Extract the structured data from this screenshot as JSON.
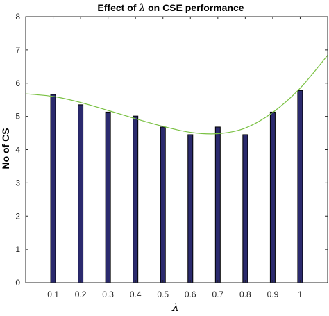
{
  "chart_data": {
    "type": "bar",
    "title": "Effect of λ on CSE performance",
    "title_prefix": "Effect of",
    "title_symbol": "λ",
    "title_suffix": "on CSE performance",
    "xlabel": "λ",
    "ylabel": "No of CS",
    "categories": [
      "0.1",
      "0.2",
      "0.3",
      "0.4",
      "0.5",
      "0.6",
      "0.7",
      "0.8",
      "0.9",
      "1"
    ],
    "x": [
      0.1,
      0.2,
      0.3,
      0.4,
      0.5,
      0.6,
      0.7,
      0.8,
      0.9,
      1.0
    ],
    "values": [
      5.66,
      5.35,
      5.13,
      5.01,
      4.68,
      4.45,
      4.68,
      4.45,
      5.13,
      5.78
    ],
    "xlim": [
      0,
      1.1
    ],
    "ylim": [
      0,
      8
    ],
    "yticks": [
      0,
      1,
      2,
      3,
      4,
      5,
      6,
      7,
      8
    ],
    "bar_color": "#2b2a6e",
    "trend_line": {
      "type": "cubic-fit",
      "color": "#7ac143",
      "x": [
        0.0,
        0.1,
        0.2,
        0.3,
        0.4,
        0.5,
        0.6,
        0.7,
        0.8,
        0.9,
        1.0,
        1.1
      ],
      "y": [
        5.68,
        5.6,
        5.42,
        5.18,
        4.93,
        4.7,
        4.52,
        4.48,
        4.65,
        5.12,
        5.85,
        6.84
      ]
    },
    "grid": false,
    "legend": "none"
  }
}
